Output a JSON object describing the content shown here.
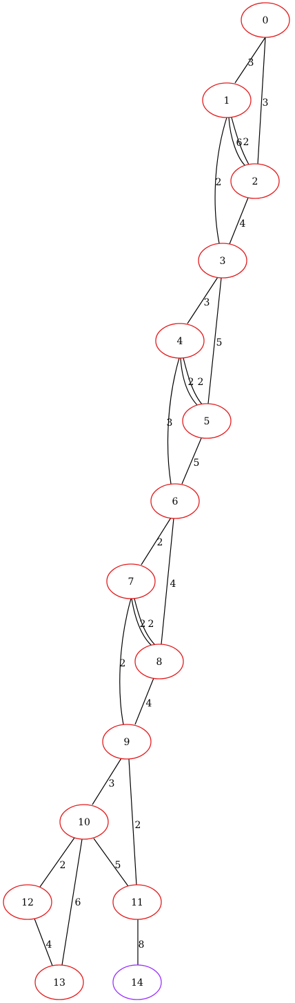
{
  "graph": {
    "colors": {
      "default_node": "#e31a1c",
      "highlight_node": "#9b30ff",
      "edge": "#000000"
    },
    "nodes": [
      {
        "id": "0",
        "label": "0",
        "color": "#e31a1c"
      },
      {
        "id": "1",
        "label": "1",
        "color": "#e31a1c"
      },
      {
        "id": "2",
        "label": "2",
        "color": "#e31a1c"
      },
      {
        "id": "3",
        "label": "3",
        "color": "#e31a1c"
      },
      {
        "id": "4",
        "label": "4",
        "color": "#e31a1c"
      },
      {
        "id": "5",
        "label": "5",
        "color": "#e31a1c"
      },
      {
        "id": "6",
        "label": "6",
        "color": "#e31a1c"
      },
      {
        "id": "7",
        "label": "7",
        "color": "#e31a1c"
      },
      {
        "id": "8",
        "label": "8",
        "color": "#e31a1c"
      },
      {
        "id": "9",
        "label": "9",
        "color": "#e31a1c"
      },
      {
        "id": "10",
        "label": "10",
        "color": "#e31a1c"
      },
      {
        "id": "11",
        "label": "11",
        "color": "#e31a1c"
      },
      {
        "id": "12",
        "label": "12",
        "color": "#e31a1c"
      },
      {
        "id": "13",
        "label": "13",
        "color": "#e31a1c"
      },
      {
        "id": "14",
        "label": "14",
        "color": "#9b30ff"
      }
    ],
    "edges": [
      {
        "from": "0",
        "to": "1",
        "weight": "3"
      },
      {
        "from": "0",
        "to": "2",
        "weight": "3"
      },
      {
        "from": "1",
        "to": "2",
        "weight": "6"
      },
      {
        "from": "1",
        "to": "2",
        "weight": "2"
      },
      {
        "from": "1",
        "to": "3",
        "weight": "2"
      },
      {
        "from": "2",
        "to": "3",
        "weight": "4"
      },
      {
        "from": "3",
        "to": "4",
        "weight": "3"
      },
      {
        "from": "3",
        "to": "5",
        "weight": "5"
      },
      {
        "from": "4",
        "to": "5",
        "weight": "2"
      },
      {
        "from": "4",
        "to": "5",
        "weight": "2"
      },
      {
        "from": "4",
        "to": "6",
        "weight": "3"
      },
      {
        "from": "5",
        "to": "6",
        "weight": "5"
      },
      {
        "from": "6",
        "to": "7",
        "weight": "2"
      },
      {
        "from": "6",
        "to": "8",
        "weight": "4"
      },
      {
        "from": "7",
        "to": "8",
        "weight": "2"
      },
      {
        "from": "7",
        "to": "8",
        "weight": "2"
      },
      {
        "from": "7",
        "to": "9",
        "weight": "2"
      },
      {
        "from": "8",
        "to": "9",
        "weight": "4"
      },
      {
        "from": "9",
        "to": "10",
        "weight": "3"
      },
      {
        "from": "9",
        "to": "11",
        "weight": "2"
      },
      {
        "from": "10",
        "to": "12",
        "weight": "2"
      },
      {
        "from": "10",
        "to": "13",
        "weight": "6"
      },
      {
        "from": "10",
        "to": "11",
        "weight": "5"
      },
      {
        "from": "12",
        "to": "13",
        "weight": "4"
      },
      {
        "from": "11",
        "to": "14",
        "weight": "8"
      }
    ]
  }
}
